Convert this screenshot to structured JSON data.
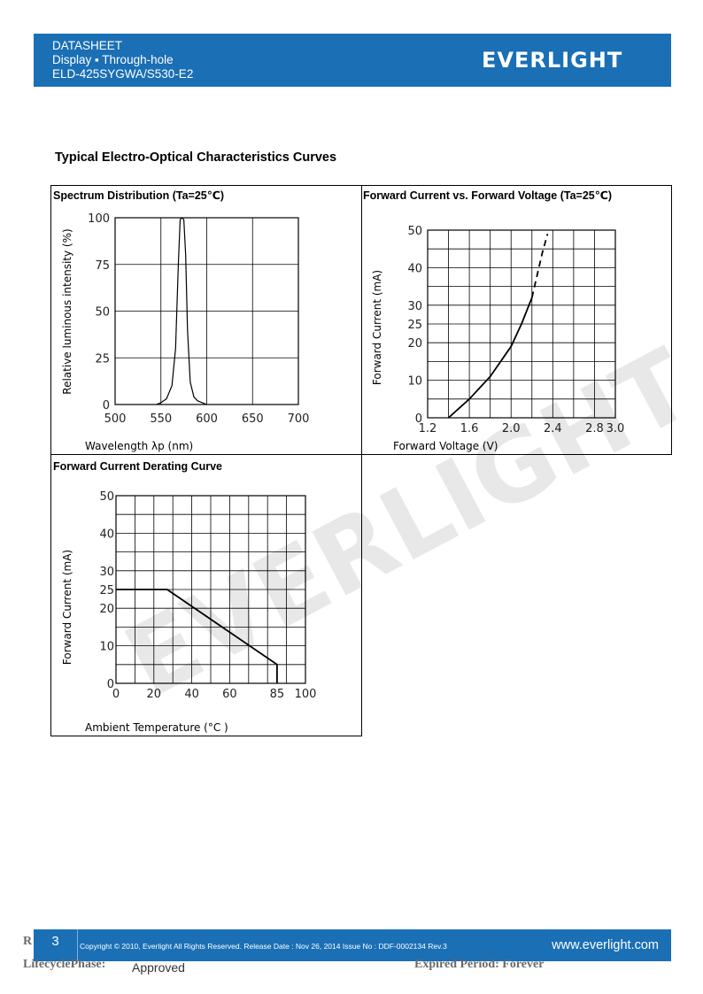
{
  "header": {
    "line1": "DATASHEET",
    "line2": "Display ▪ Through-hole",
    "line3": "ELD-425SYGWA/S530-E2",
    "logo_text": "EVERLIGHT",
    "bg_color": "#1a6fb5"
  },
  "section_title": "Typical Electro-Optical Characteristics Curves",
  "charts": {
    "spectrum": {
      "title": "Spectrum Distribution (Ta=25℃)",
      "ylabel": "Relative luminous intensity (%)",
      "xlabel": "Wavelength λp (nm)",
      "x_ticks": [
        "500",
        "550",
        "600",
        "650",
        "700"
      ],
      "y_ticks": [
        "0",
        "25",
        "50",
        "75",
        "100"
      ]
    },
    "iv": {
      "title": "Forward Current vs. Forward Voltage (Ta=25℃)",
      "ylabel": "Forward Current (mA)",
      "xlabel": "Forward Voltage (V)",
      "x_ticks": [
        "1.2",
        "1.6",
        "2.0",
        "2.4",
        "2.8",
        "3.0"
      ],
      "y_ticks": [
        "0",
        "10",
        "20",
        "25",
        "30",
        "40",
        "50"
      ]
    },
    "derating": {
      "title": "Forward Current Derating Curve",
      "ylabel": "Forward Current (mA)",
      "xlabel": "Ambient Temperature (°C )",
      "x_ticks": [
        "0",
        "20",
        "40",
        "60",
        "85",
        "100"
      ],
      "y_ticks": [
        "0",
        "10",
        "20",
        "25",
        "30",
        "40",
        "50"
      ]
    }
  },
  "chart_data": [
    {
      "type": "line",
      "title": "Spectrum Distribution (Ta=25℃)",
      "xlabel": "Wavelength λp (nm)",
      "ylabel": "Relative luminous intensity (%)",
      "xlim": [
        500,
        700
      ],
      "ylim": [
        0,
        100
      ],
      "grid": true,
      "series": [
        {
          "x": [
            545,
            550,
            556,
            562,
            566,
            569,
            571,
            573,
            575,
            577,
            579,
            582,
            586,
            590,
            595,
            600
          ],
          "y": [
            0,
            1,
            3,
            10,
            30,
            75,
            99,
            100,
            99,
            80,
            40,
            12,
            4,
            2,
            1,
            0
          ]
        }
      ]
    },
    {
      "type": "line",
      "title": "Forward Current vs. Forward Voltage (Ta=25℃)",
      "xlabel": "Forward Voltage (V)",
      "ylabel": "Forward Current (mA)",
      "xlim": [
        1.2,
        3.0
      ],
      "ylim": [
        0,
        50
      ],
      "grid": true,
      "series": [
        {
          "x": [
            1.4,
            1.6,
            1.8,
            2.0,
            2.1,
            2.2
          ],
          "y": [
            0,
            5,
            11,
            19,
            25,
            32
          ]
        },
        {
          "x": [
            2.2,
            2.25,
            2.3,
            2.35
          ],
          "y": [
            32,
            38,
            44,
            49
          ]
        }
      ]
    },
    {
      "type": "line",
      "title": "Forward Current Derating Curve",
      "xlabel": "Ambient Temperature (°C )",
      "ylabel": "Forward Current (mA)",
      "xlim": [
        0,
        100
      ],
      "ylim": [
        0,
        50
      ],
      "grid": true,
      "series": [
        {
          "x": [
            0,
            27,
            85,
            85
          ],
          "y": [
            25,
            25,
            5,
            0
          ]
        }
      ]
    }
  ],
  "footer": {
    "page_number": "3",
    "copyright": "Copyright © 2010, Everlight All Rights Reserved. Release Date : Nov 26, 2014 Issue No : DDF-0002134 Rev.3",
    "website": "www.everlight.com",
    "lifecycle_label": "LifecyclePhase:",
    "lifecycle_value": "Approved",
    "expired": "Expired Period: Forever",
    "rev_letter": "R"
  },
  "watermark_text": "EVERLIGHT"
}
